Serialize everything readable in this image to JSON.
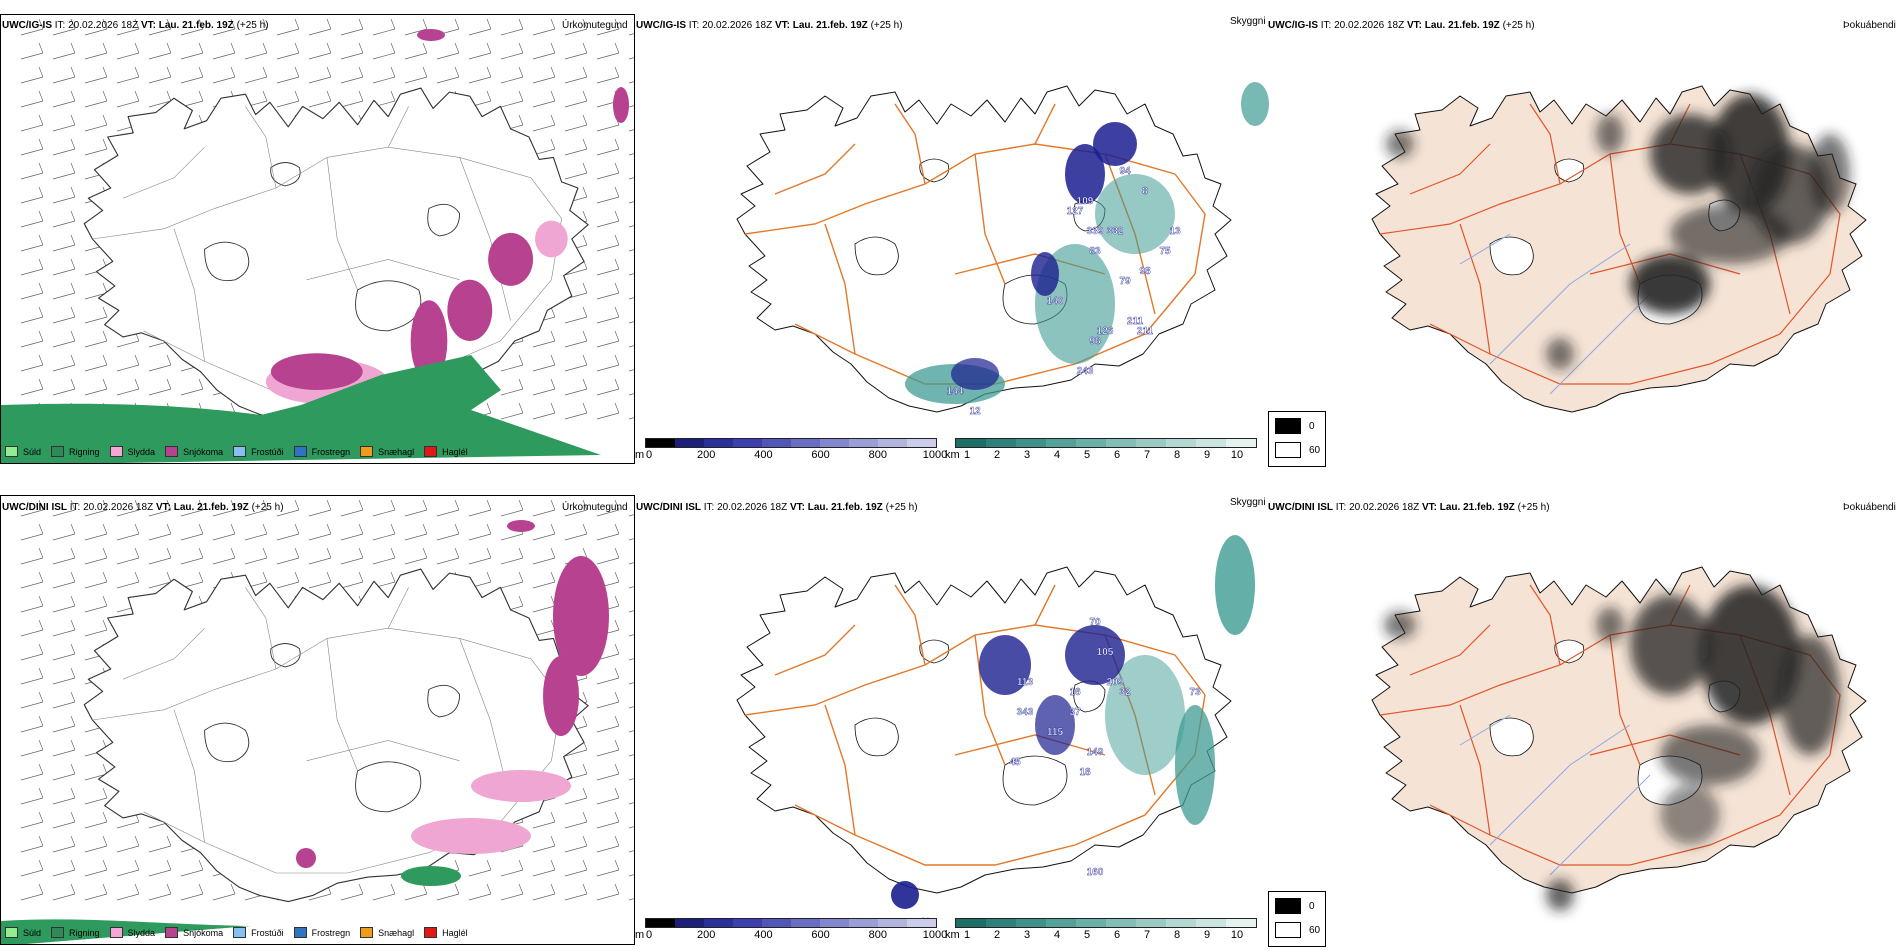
{
  "colors": {
    "land_fill": "#f5e4d6",
    "road": "#e2782a",
    "coast": "#222222",
    "sea_rain": "#2e9a5e",
    "snow": "#b7428f",
    "sleet": "#f0a6d2",
    "ceiling_dark": "#1b1f8f",
    "visibility_teal": "#3f9b93",
    "fog_dark": "#222222",
    "river": "#8fa8e6"
  },
  "rows": [
    {
      "model": "UWC/IG-IS",
      "it_label": "IT:",
      "it_value": "20.02.2026 18Z",
      "vt_label": "VT:",
      "vt_value": "Lau. 21.feb. 19Z",
      "lead": "(+25 h)"
    },
    {
      "model": "UWC/DINI ISL",
      "it_label": "IT:",
      "it_value": "20.02.2026 18Z",
      "vt_label": "VT:",
      "vt_value": "Lau. 21.feb. 19Z",
      "lead": "(+25 h)"
    }
  ],
  "panel_titles": {
    "precip": "Úrkomutegund",
    "ceiling": "Skyggni",
    "fog": "Þokuábendi"
  },
  "precip_legend": [
    {
      "label": "Súld",
      "color": "#90ee90"
    },
    {
      "label": "Rigning",
      "color": "#2e8b57"
    },
    {
      "label": "Slydda",
      "color": "#f4a6d7"
    },
    {
      "label": "Snjókoma",
      "color": "#b7428f"
    },
    {
      "label": "Frostúði",
      "color": "#87bff0"
    },
    {
      "label": "Frostregn",
      "color": "#2f74c0"
    },
    {
      "label": "Snæhagl",
      "color": "#f09a1e"
    },
    {
      "label": "Haglél",
      "color": "#e01818"
    }
  ],
  "ceiling_bar": {
    "unit": "m",
    "ticks": [
      "0",
      "200",
      "400",
      "600",
      "800",
      "1000"
    ],
    "colors": [
      "#000000",
      "#1c1f7a",
      "#2a2f9a",
      "#3b3fb0",
      "#5256b8",
      "#6a6ec2",
      "#8286cc",
      "#9a9dd6",
      "#b2b4e0",
      "#caccea"
    ]
  },
  "visibility_bar": {
    "unit": "km",
    "ticks": [
      "1",
      "2",
      "3",
      "4",
      "5",
      "6",
      "7",
      "8",
      "9",
      "10"
    ],
    "colors": [
      "#1e6e66",
      "#2f807a",
      "#3f918a",
      "#53a199",
      "#6aafa8",
      "#82bdb6",
      "#9bcac4",
      "#b3d7d2",
      "#cbe4e0",
      "#e5f2f0"
    ]
  },
  "cloud_legend": {
    "dark": "0",
    "light": "60"
  },
  "ceiling_labels_top": [
    "94",
    "109",
    "127",
    "339",
    "332",
    "8",
    "83",
    "79",
    "98",
    "211",
    "126",
    "211",
    "140",
    "98",
    "243",
    "144",
    "12",
    "13",
    "75"
  ],
  "ceiling_labels_bottom": [
    "70",
    "105",
    "113",
    "343",
    "37",
    "209",
    "16",
    "32",
    "115",
    "45",
    "149",
    "18",
    "160",
    "48",
    "73"
  ]
}
